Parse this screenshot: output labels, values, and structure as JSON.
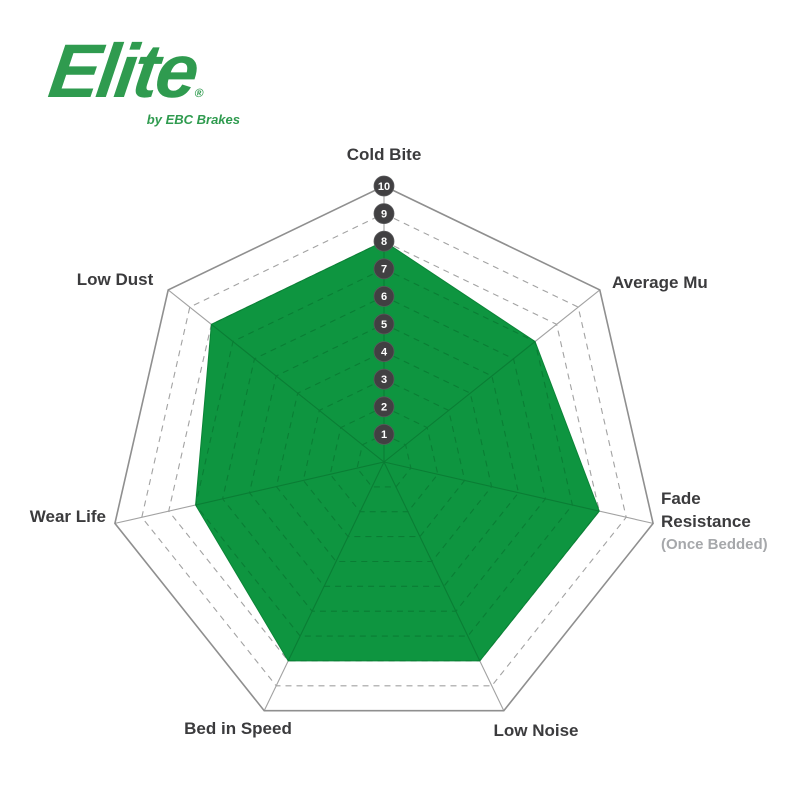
{
  "page": {
    "background": "#ffffff"
  },
  "logo": {
    "brand": "Elite",
    "registered_mark": "®",
    "tagline": "by EBC Brakes",
    "color": "#2f9b4f"
  },
  "chart_data": {
    "type": "radar",
    "title": "",
    "categories": [
      "Cold Bite",
      "Average Mu",
      "Fade Resistance (Once Bedded)",
      "Low Noise",
      "Bed in Speed",
      "Wear Life",
      "Low Dust"
    ],
    "values": [
      8,
      7,
      8,
      8,
      8,
      7,
      8
    ],
    "axes": [
      {
        "label": "Cold Bite",
        "value": 8
      },
      {
        "label": "Average Mu",
        "value": 7
      },
      {
        "label": "Fade",
        "label2": "Resistance",
        "sublabel": "(Once Bedded)",
        "value": 8
      },
      {
        "label": "Low Noise",
        "value": 8
      },
      {
        "label": "Bed in Speed",
        "value": 8
      },
      {
        "label": "Wear Life",
        "value": 7
      },
      {
        "label": "Low Dust",
        "value": 8
      }
    ],
    "scale": {
      "min": 0,
      "max": 10,
      "ring_step": 1,
      "ticks": [
        1,
        2,
        3,
        4,
        5,
        6,
        7,
        8,
        9,
        10
      ]
    },
    "grid": "on",
    "legend": "none",
    "colors": {
      "fill": "#0e9540",
      "fill_edge": "#0b8437",
      "grid": "#a2a2a2",
      "grid_outer": "#8f8f8f",
      "grid_inner": "#0a7a33",
      "badge": "#414042",
      "badge_text": "#ffffff",
      "label": "#3b3b3d",
      "sublabel": "#a6a8ab"
    }
  }
}
